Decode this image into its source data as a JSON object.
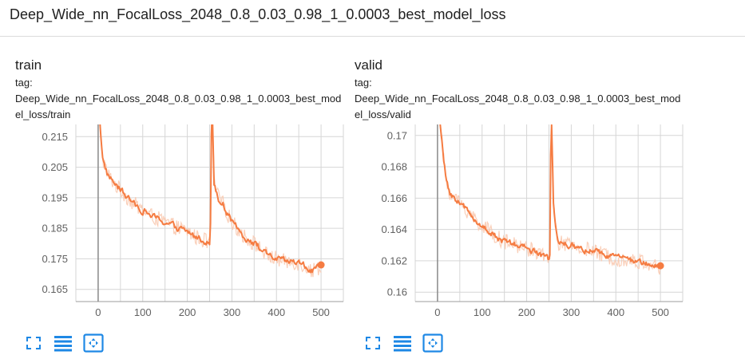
{
  "header": {
    "title": "Deep_Wide_nn_FocalLoss_2048_0.8_0.03_0.98_1_0.0003_best_model_loss"
  },
  "colors": {
    "smoothed": "#f57c42",
    "raw": "#f9c7ad",
    "grid": "#d6d6d6",
    "axis": "#9e9e9e",
    "zero_line": "#8a8a8a",
    "icon": "#1e88e5"
  },
  "icons": [
    "fullscreen-icon",
    "toggle-log-scale-icon",
    "fit-domain-icon"
  ],
  "cards": [
    {
      "title": "train",
      "tag_label": "tag:",
      "tag_value": "Deep_Wide_nn_FocalLoss_2048_0.8_0.03_0.98_1_0.0003_best_model_loss/train"
    },
    {
      "title": "valid",
      "tag_label": "tag:",
      "tag_value": "Deep_Wide_nn_FocalLoss_2048_0.8_0.03_0.98_1_0.0003_best_model_loss/valid"
    }
  ],
  "chart_data": [
    {
      "type": "line",
      "x_range": [
        -50,
        550
      ],
      "y_range": [
        0.161,
        0.219
      ],
      "x_ticks": [
        0,
        100,
        200,
        300,
        400,
        500
      ],
      "y_ticks": [
        0.165,
        0.175,
        0.185,
        0.195,
        0.205,
        0.215
      ],
      "y_tick_labels": [
        "0.165",
        "0.175",
        "0.185",
        "0.195",
        "0.205",
        "0.215"
      ],
      "grid": true,
      "series": [
        {
          "x": [
            0,
            10,
            20,
            30,
            40,
            60,
            80,
            100,
            120,
            150,
            180,
            200,
            220,
            240,
            250,
            252,
            255,
            260,
            270,
            280,
            300,
            330,
            360,
            380,
            400,
            420,
            440,
            460,
            480,
            490,
            500
          ],
          "y": [
            0.228,
            0.208,
            0.203,
            0.201,
            0.199,
            0.196,
            0.193,
            0.191,
            0.189,
            0.187,
            0.185,
            0.184,
            0.182,
            0.181,
            0.18,
            0.186,
            0.23,
            0.2,
            0.195,
            0.193,
            0.187,
            0.182,
            0.179,
            0.176,
            0.175,
            0.174,
            0.174,
            0.173,
            0.171,
            0.172,
            0.1725
          ]
        }
      ]
    },
    {
      "type": "line",
      "x_range": [
        -50,
        550
      ],
      "y_range": [
        0.1594,
        0.1707
      ],
      "x_ticks": [
        0,
        100,
        200,
        300,
        400,
        500
      ],
      "y_ticks": [
        0.16,
        0.162,
        0.164,
        0.166,
        0.168,
        0.17
      ],
      "y_tick_labels": [
        "0.16",
        "0.162",
        "0.164",
        "0.166",
        "0.168",
        "0.17"
      ],
      "grid": true,
      "series": [
        {
          "x": [
            0,
            10,
            20,
            30,
            50,
            80,
            100,
            130,
            150,
            200,
            230,
            240,
            250,
            252,
            255,
            260,
            265,
            270,
            290,
            320,
            350,
            380,
            400,
            430,
            460,
            480,
            500
          ],
          "y": [
            0.1725,
            0.1695,
            0.167,
            0.1662,
            0.1657,
            0.1648,
            0.1642,
            0.1636,
            0.1632,
            0.1628,
            0.1625,
            0.1622,
            0.1621,
            0.1625,
            0.172,
            0.1655,
            0.164,
            0.1632,
            0.163,
            0.1628,
            0.1626,
            0.1623,
            0.1622,
            0.162,
            0.1619,
            0.1618,
            0.1615
          ]
        }
      ]
    }
  ]
}
